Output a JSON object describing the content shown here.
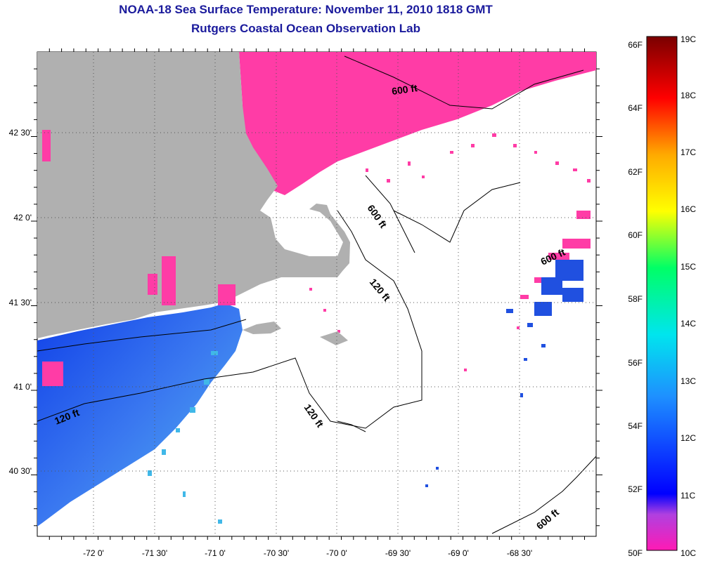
{
  "title": "NOAA-18 Sea Surface Temperature:  November 11, 2010 1818 GMT",
  "subtitle": "Rutgers Coastal Ocean Observation Lab",
  "axes": {
    "x_ticks": [
      "-72 0'",
      "-71 30'",
      "-71 0'",
      "-70 30'",
      "-70 0'",
      "-69 30'",
      "-69 0'",
      "-68 30'"
    ],
    "y_ticks": [
      "42 30'",
      "42 0'",
      "41 30'",
      "41 0'",
      "40 30'"
    ]
  },
  "contour_labels": [
    "600 ft",
    "600 ft",
    "600 ft",
    "120 ft",
    "120 ft",
    "120 ft",
    "600 ft"
  ],
  "colorbar": {
    "fahrenheit": [
      "66F",
      "64F",
      "62F",
      "60F",
      "58F",
      "56F",
      "54F",
      "52F",
      "50F"
    ],
    "celsius": [
      "19C",
      "18C",
      "17C",
      "16C",
      "15C",
      "14C",
      "13C",
      "12C",
      "11C",
      "10C"
    ],
    "stops": [
      "#ff1ab4",
      "#b040e0",
      "#0000ff",
      "#1e90ff",
      "#00e5ee",
      "#00ff66",
      "#ffff00",
      "#ffaa00",
      "#ff0000",
      "#7a0000"
    ]
  },
  "colors": {
    "land": "#b0b0b0",
    "cold_water": "#ff3ca6",
    "mid_water": "#1e50e0",
    "warm_water": "#30d0e0",
    "title": "#1a1a9c"
  }
}
